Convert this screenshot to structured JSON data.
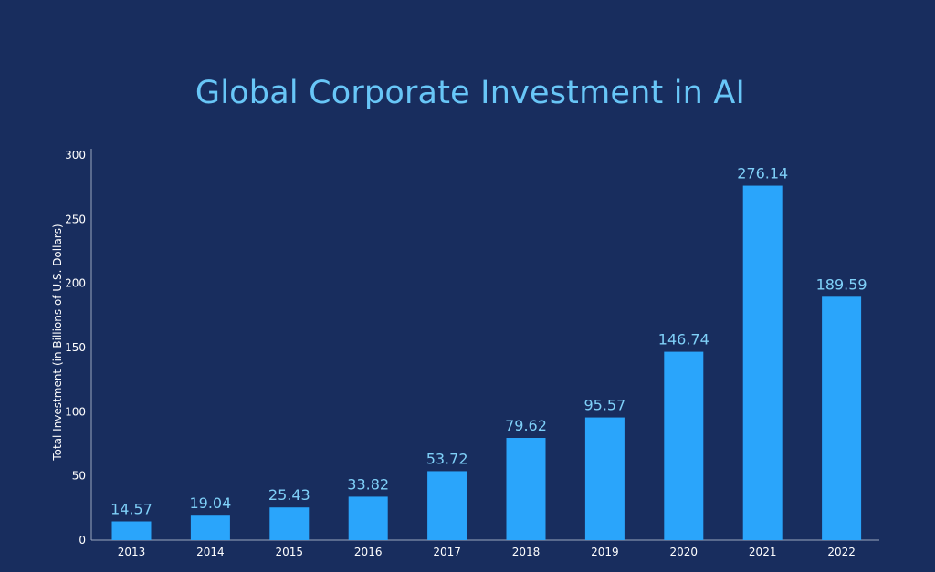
{
  "chart_data": {
    "type": "bar",
    "title": "Global Corporate Investment in AI",
    "xlabel": "",
    "ylabel": "Total Investment (in Billions of U.S. Dollars)",
    "categories": [
      "2013",
      "2014",
      "2015",
      "2016",
      "2017",
      "2018",
      "2019",
      "2020",
      "2021",
      "2022"
    ],
    "values": [
      14.57,
      19.04,
      25.43,
      33.82,
      53.72,
      79.62,
      95.57,
      146.74,
      276.14,
      189.59
    ],
    "value_labels": [
      "14.57",
      "19.04",
      "25.43",
      "33.82",
      "53.72",
      "79.62",
      "95.57",
      "146.74",
      "276.14",
      "189.59"
    ],
    "ylim": [
      0,
      300
    ],
    "yticks": [
      0,
      50,
      100,
      150,
      200,
      250,
      300
    ],
    "grid": false,
    "legend": "none",
    "colors": {
      "background": "#182d5e",
      "bar": "#2aa5fb",
      "title": "#68c6f7",
      "data_label": "#7fd0f8",
      "text": "#ffffff",
      "axis": "#9aa6bf"
    }
  }
}
